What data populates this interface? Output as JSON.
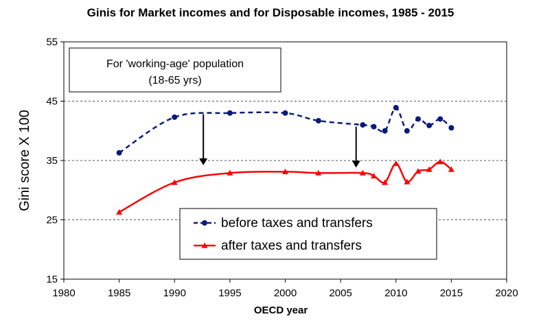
{
  "chart_data": {
    "type": "line",
    "title": "Ginis for Market incomes and for Disposable incomes, 1985 - 2015",
    "xlabel": "OECD year",
    "ylabel": "Gini score X 100",
    "xlim": [
      1980,
      2020
    ],
    "ylim": [
      15,
      55
    ],
    "xticks": [
      1980,
      1985,
      1990,
      1995,
      2000,
      2005,
      2010,
      2015,
      2020
    ],
    "yticks": [
      15,
      25,
      35,
      45,
      55
    ],
    "grid": "horizontal dashed",
    "annotation": {
      "line1": "For 'working-age' population",
      "line2": "(18-65 yrs)"
    },
    "arrows": [
      {
        "x": 1992.6,
        "from": 42.8,
        "to": 34.2
      },
      {
        "x": 2006.4,
        "from": 40.7,
        "to": 33.8
      }
    ],
    "legend_position": "bottom-center",
    "series": [
      {
        "name": "before taxes and transfers",
        "color": "#0a1a7a",
        "marker": "circle",
        "style": "dashed",
        "x": [
          1985,
          1990,
          1995,
          2000,
          2003,
          2007,
          2008,
          2009,
          2010,
          2011,
          2012,
          2013,
          2014,
          2015
        ],
        "values": [
          36.3,
          42.3,
          43.0,
          43.0,
          41.7,
          41.0,
          40.7,
          40.0,
          43.9,
          40.0,
          42.0,
          40.9,
          42.0,
          40.5
        ]
      },
      {
        "name": "after taxes and transfers",
        "color": "#ff0000",
        "marker": "triangle",
        "style": "solid",
        "x": [
          1985,
          1990,
          1995,
          2000,
          2003,
          2007,
          2008,
          2009,
          2010,
          2011,
          2012,
          2013,
          2014,
          2015
        ],
        "values": [
          26.3,
          31.3,
          32.9,
          33.1,
          32.9,
          32.9,
          32.4,
          31.3,
          34.5,
          31.4,
          33.2,
          33.5,
          34.8,
          33.5
        ]
      }
    ]
  }
}
